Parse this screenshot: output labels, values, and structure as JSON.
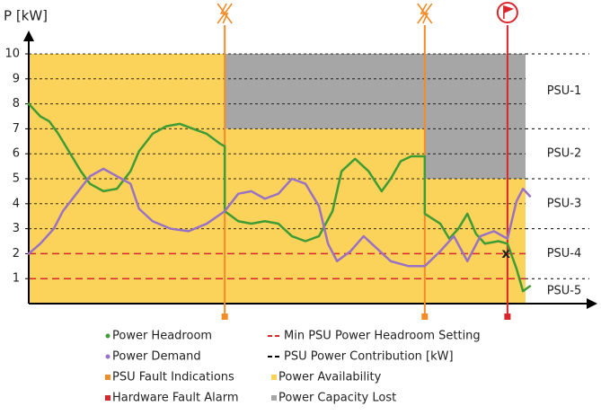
{
  "chart_data": {
    "type": "line",
    "ylabel": "P [kW]",
    "xlim": [
      0,
      100
    ],
    "ylim": [
      0,
      10
    ],
    "yticks": [
      1,
      2,
      3,
      4,
      5,
      6,
      7,
      8,
      9,
      10
    ],
    "series": [
      {
        "name": "Power Headroom",
        "color": "#3f9c35",
        "x": [
          0,
          2.3,
          4.1,
          5.9,
          7.7,
          10.4,
          12.2,
          14.9,
          17.6,
          20.3,
          22.0,
          24.7,
          27.4,
          30.1,
          32.8,
          35.5,
          38.2,
          39.1,
          39.1,
          41.8,
          44.4,
          47.1,
          49.8,
          52.5,
          55.2,
          57.9,
          60.6,
          62.4,
          65.1,
          67.8,
          70.4,
          72.2,
          74.2,
          76.3,
          79.0,
          79.0,
          82.1,
          83.9,
          85.7,
          87.5,
          89.2,
          91.0,
          93.7,
          95.5,
          97.3,
          98.6,
          100
        ],
        "values": [
          8.0,
          7.5,
          7.3,
          6.8,
          6.2,
          5.3,
          4.8,
          4.5,
          4.6,
          5.3,
          6.1,
          6.8,
          7.1,
          7.2,
          7.0,
          6.8,
          6.4,
          6.3,
          3.7,
          3.3,
          3.2,
          3.3,
          3.2,
          2.7,
          2.5,
          2.7,
          3.7,
          5.3,
          5.8,
          5.3,
          4.5,
          5.0,
          5.7,
          5.9,
          5.9,
          3.6,
          3.2,
          2.6,
          3.0,
          3.6,
          2.8,
          2.4,
          2.5,
          2.4,
          1.4,
          0.5,
          0.7
        ]
      },
      {
        "name": "Power Demand",
        "color": "#9a72c4",
        "x": [
          0,
          2.3,
          5.0,
          6.8,
          9.5,
          12.2,
          14.9,
          17.6,
          20.3,
          22.0,
          24.7,
          28.3,
          31.9,
          35.5,
          39.1,
          41.8,
          44.4,
          47.1,
          49.8,
          52.5,
          55.2,
          57.9,
          59.7,
          61.5,
          64.2,
          66.8,
          69.5,
          72.2,
          75.8,
          79.0,
          82.1,
          84.8,
          87.5,
          90.1,
          92.8,
          95.5,
          97.3,
          98.6,
          100
        ],
        "values": [
          2.0,
          2.4,
          3.0,
          3.7,
          4.4,
          5.1,
          5.4,
          5.1,
          4.8,
          3.8,
          3.3,
          3.0,
          2.9,
          3.2,
          3.7,
          4.4,
          4.5,
          4.2,
          4.4,
          5.0,
          4.8,
          3.9,
          2.4,
          1.7,
          2.1,
          2.7,
          2.2,
          1.7,
          1.5,
          1.5,
          2.1,
          2.7,
          1.7,
          2.7,
          2.9,
          2.6,
          4.1,
          4.6,
          4.3
        ]
      }
    ],
    "psu_faults": {
      "name": "PSU Fault Indications",
      "color": "#f28c28",
      "x": [
        39.1,
        79.0
      ]
    },
    "alarm": {
      "name": "Hardware Fault Alarm",
      "color": "#d9262c",
      "x": [
        95.5
      ]
    },
    "min_headroom": {
      "name": "Min PSU Power Headroom Setting",
      "color": "#d9262c",
      "values": [
        2,
        1
      ]
    },
    "contribution": {
      "name": "PSU Power Contribution [kW]",
      "color": "#000000",
      "values": [
        10,
        9,
        8,
        7,
        6,
        5,
        4,
        3
      ]
    },
    "availability": {
      "name": "Power Availability",
      "color": "#fbd35a",
      "text_color": "#fde48a",
      "regions": [
        {
          "x": [
            0,
            39.1
          ],
          "range": [
            0,
            10
          ]
        },
        {
          "x": [
            39.1,
            79.0
          ],
          "range": [
            0,
            7
          ]
        },
        {
          "x": [
            79.0,
            99.1
          ],
          "range": [
            0,
            5
          ]
        }
      ]
    },
    "capacity_lost": {
      "name": "Power Capacity Lost",
      "color": "#a6a6a6",
      "regions": [
        {
          "x": [
            39.1,
            99.1
          ],
          "range": [
            7,
            10
          ]
        },
        {
          "x": [
            79.0,
            99.1
          ],
          "range": [
            5,
            7
          ]
        }
      ]
    },
    "psus": [
      {
        "name": "PSU-1",
        "range": [
          7,
          10
        ]
      },
      {
        "name": "PSU-2",
        "range": [
          5,
          7
        ]
      },
      {
        "name": "PSU-3",
        "range": [
          3,
          5
        ]
      },
      {
        "name": "PSU-4",
        "range": [
          1,
          3
        ]
      },
      {
        "name": "PSU-5",
        "range": [
          0,
          1
        ]
      }
    ],
    "annotations": [
      {
        "text": "x",
        "x": 95.2,
        "y": 2.0
      }
    ]
  }
}
